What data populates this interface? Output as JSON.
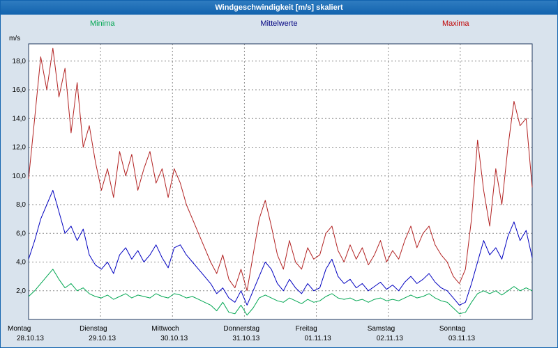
{
  "header": {
    "title": "Windgeschwindigkeit [m/s] skaliert"
  },
  "theme": {
    "titlebar": "#1263ae",
    "background": "#d9e3ed",
    "plot_background": "#ffffff",
    "grid": "#8c8c8c",
    "plot_border": "#223a5e"
  },
  "legend": {
    "items": [
      {
        "key": "minima",
        "label": "Minima",
        "color": "#00a651"
      },
      {
        "key": "mittelwerte",
        "label": "Mittelwerte",
        "color": "#000080"
      },
      {
        "key": "maxima",
        "label": "Maxima",
        "color": "#c00000"
      }
    ]
  },
  "chart_data": {
    "type": "line",
    "title": "Windgeschwindigkeit [m/s] skaliert",
    "ylabel": "m/s",
    "xlabel": "",
    "ylim": [
      0,
      19.2
    ],
    "grid": true,
    "grid_color": "#8c8c8c",
    "legend_position": "top",
    "x_resolution": "2-hour intervals over 7 days",
    "yticks": [
      {
        "value": 2,
        "label": "2,0"
      },
      {
        "value": 4,
        "label": "4,0"
      },
      {
        "value": 6,
        "label": "6,0"
      },
      {
        "value": 8,
        "label": "8,0"
      },
      {
        "value": 10,
        "label": "10,0"
      },
      {
        "value": 12,
        "label": "12,0"
      },
      {
        "value": 14,
        "label": "14,0"
      },
      {
        "value": 16,
        "label": "16,0"
      },
      {
        "value": 18,
        "label": "18,0"
      }
    ],
    "days": [
      {
        "weekday": "Montag",
        "date": "28.10.13"
      },
      {
        "weekday": "Dienstag",
        "date": "29.10.13"
      },
      {
        "weekday": "Mittwoch",
        "date": "30.10.13"
      },
      {
        "weekday": "Donnerstag",
        "date": "31.10.13"
      },
      {
        "weekday": "Freitag",
        "date": "01.11.13"
      },
      {
        "weekday": "Samstag",
        "date": "02.11.13"
      },
      {
        "weekday": "Sonntag",
        "date": "03.11.13"
      }
    ],
    "series": [
      {
        "key": "maxima",
        "name": "Maxima",
        "color": "#b22222",
        "values": [
          9.8,
          14.0,
          18.3,
          16.0,
          18.9,
          15.5,
          17.5,
          13.0,
          16.5,
          12.0,
          13.5,
          11.0,
          9.0,
          10.5,
          8.5,
          11.7,
          10.0,
          11.5,
          9.0,
          10.5,
          11.7,
          9.5,
          10.5,
          8.5,
          10.5,
          9.5,
          8.0,
          7.0,
          6.0,
          5.0,
          4.0,
          3.2,
          4.5,
          2.8,
          2.2,
          3.5,
          2.0,
          4.5,
          7.0,
          8.3,
          6.5,
          4.5,
          3.5,
          5.5,
          4.0,
          3.5,
          5.0,
          4.2,
          4.5,
          6.0,
          6.5,
          4.8,
          4.0,
          5.2,
          4.2,
          5.0,
          3.8,
          4.5,
          5.5,
          4.0,
          4.8,
          4.2,
          5.5,
          6.5,
          5.0,
          6.0,
          6.5,
          5.2,
          4.5,
          4.0,
          3.0,
          2.5,
          3.5,
          7.0,
          12.5,
          9.0,
          6.5,
          10.5,
          8.0,
          12.0,
          15.2,
          13.5,
          14.0,
          9.2
        ]
      },
      {
        "key": "mittelwerte",
        "name": "Mittelwerte",
        "color": "#0000c0",
        "values": [
          4.2,
          5.5,
          7.0,
          8.0,
          9.0,
          7.5,
          6.0,
          6.5,
          5.5,
          6.3,
          4.5,
          3.8,
          3.5,
          4.0,
          3.2,
          4.5,
          5.0,
          4.2,
          4.8,
          4.0,
          4.5,
          5.2,
          4.3,
          3.6,
          5.0,
          5.2,
          4.5,
          4.0,
          3.5,
          3.0,
          2.5,
          1.8,
          2.2,
          1.5,
          1.2,
          2.0,
          1.0,
          2.0,
          3.0,
          4.0,
          3.5,
          2.5,
          2.0,
          2.8,
          2.2,
          1.8,
          2.5,
          2.0,
          2.2,
          3.5,
          4.2,
          3.0,
          2.5,
          2.8,
          2.2,
          2.5,
          2.0,
          2.3,
          2.6,
          2.1,
          2.4,
          2.0,
          2.6,
          3.0,
          2.5,
          2.8,
          3.2,
          2.6,
          2.2,
          2.0,
          1.5,
          1.0,
          1.2,
          2.5,
          4.0,
          5.5,
          4.5,
          5.0,
          4.2,
          5.8,
          6.8,
          5.5,
          6.2,
          4.3
        ]
      },
      {
        "key": "minima",
        "name": "Minima",
        "color": "#00a651",
        "values": [
          1.6,
          2.0,
          2.5,
          3.0,
          3.5,
          2.8,
          2.2,
          2.5,
          2.0,
          2.2,
          1.8,
          1.6,
          1.5,
          1.7,
          1.4,
          1.6,
          1.8,
          1.5,
          1.7,
          1.6,
          1.5,
          1.8,
          1.6,
          1.5,
          1.8,
          1.7,
          1.5,
          1.6,
          1.4,
          1.2,
          1.0,
          0.6,
          1.2,
          0.5,
          0.4,
          1.0,
          0.3,
          0.8,
          1.5,
          1.7,
          1.5,
          1.3,
          1.2,
          1.5,
          1.3,
          1.1,
          1.4,
          1.2,
          1.3,
          1.6,
          1.8,
          1.5,
          1.4,
          1.5,
          1.3,
          1.4,
          1.2,
          1.4,
          1.5,
          1.3,
          1.4,
          1.3,
          1.5,
          1.7,
          1.5,
          1.6,
          1.8,
          1.5,
          1.3,
          1.2,
          0.8,
          0.4,
          0.5,
          1.2,
          1.8,
          2.0,
          1.8,
          2.0,
          1.7,
          2.0,
          2.3,
          2.0,
          2.2,
          2.0
        ]
      }
    ]
  }
}
